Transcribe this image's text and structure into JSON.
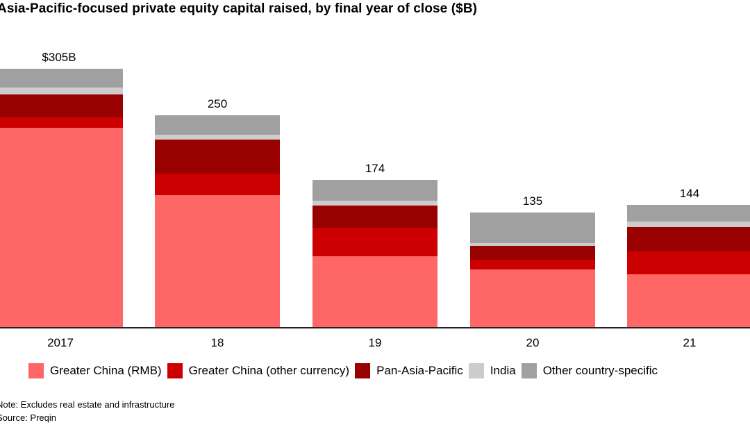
{
  "title": "Asia-Pacific-focused private equity capital raised, by final year of close ($B)",
  "colors": {
    "greater_china_rmb": "#FF6666",
    "greater_china_other": "#CC0000",
    "pan_asia_pacific": "#990000",
    "india": "#CCCCCC",
    "other_country": "#A0A0A0",
    "axis": "#222222"
  },
  "legend": {
    "items": [
      {
        "label": "Greater China (RMB)",
        "color": "#FF6666"
      },
      {
        "label": "Greater China (other currency)",
        "color": "#CC0000"
      },
      {
        "label": "Pan-Asia-Pacific",
        "color": "#990000"
      },
      {
        "label": "India",
        "color": "#CCCCCC"
      },
      {
        "label": "Other country-specific",
        "color": "#A0A0A0"
      }
    ]
  },
  "bars": [
    {
      "x_label": "2017",
      "total_label": "$305B"
    },
    {
      "x_label": "18",
      "total_label": "250"
    },
    {
      "x_label": "19",
      "total_label": "174"
    },
    {
      "x_label": "20",
      "total_label": "135"
    },
    {
      "x_label": "21",
      "total_label": "144"
    }
  ],
  "footer": {
    "note": "Note: Excludes real estate and infrastructure",
    "source": "Source: Preqin"
  },
  "chart_data": {
    "type": "bar",
    "stacked": true,
    "title": "Asia-Pacific-focused private equity capital raised, by final year of close ($B)",
    "xlabel": "",
    "ylabel": "$B",
    "categories": [
      "2017",
      "18",
      "19",
      "20",
      "21"
    ],
    "totals": [
      305,
      250,
      174,
      135,
      144
    ],
    "series": [
      {
        "name": "Greater China (RMB)",
        "color": "#FF6666",
        "values": [
          235,
          156,
          84,
          68,
          62
        ]
      },
      {
        "name": "Greater China (other currency)",
        "color": "#CC0000",
        "values": [
          13,
          25,
          33,
          11,
          27
        ]
      },
      {
        "name": "Pan-Asia-Pacific",
        "color": "#990000",
        "values": [
          27,
          40,
          27,
          17,
          29
        ]
      },
      {
        "name": "India",
        "color": "#CCCCCC",
        "values": [
          8,
          6,
          5,
          3,
          6
        ]
      },
      {
        "name": "Other country-specific",
        "color": "#A0A0A0",
        "values": [
          22,
          23,
          25,
          36,
          20
        ]
      }
    ],
    "ylim": [
      0,
      305
    ],
    "grid": false,
    "legend_position": "bottom",
    "annotations": [
      "Note: Excludes real estate and infrastructure",
      "Source: Preqin"
    ]
  }
}
